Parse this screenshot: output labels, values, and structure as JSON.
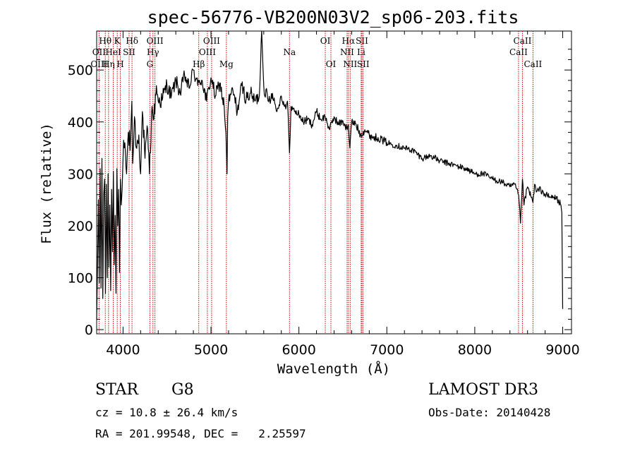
{
  "chart_data": {
    "type": "line",
    "title": "spec-56776-VB200N03V2_sp06-203.fits",
    "xlabel": "Wavelength (Å)",
    "ylabel": "Flux (relative)",
    "xlim": [
      3700,
      9100
    ],
    "ylim": [
      -8,
      575
    ],
    "xticks": [
      4000,
      5000,
      6000,
      7000,
      8000,
      9000
    ],
    "yticks": [
      0,
      100,
      200,
      300,
      400,
      500
    ],
    "series": [
      {
        "name": "flux",
        "color": "#000000",
        "x": [
          3700,
          3710,
          3720,
          3730,
          3740,
          3750,
          3760,
          3770,
          3780,
          3790,
          3800,
          3810,
          3820,
          3830,
          3840,
          3850,
          3860,
          3870,
          3880,
          3890,
          3900,
          3910,
          3920,
          3930,
          3940,
          3950,
          3960,
          3970,
          3980,
          3990,
          4000,
          4020,
          4040,
          4060,
          4080,
          4100,
          4110,
          4130,
          4150,
          4180,
          4200,
          4220,
          4250,
          4280,
          4300,
          4330,
          4350,
          4380,
          4400,
          4450,
          4500,
          4550,
          4600,
          4650,
          4700,
          4750,
          4800,
          4850,
          4870,
          4900,
          4950,
          5000,
          5050,
          5100,
          5150,
          5170,
          5183,
          5190,
          5200,
          5250,
          5300,
          5350,
          5400,
          5450,
          5500,
          5550,
          5577,
          5600,
          5650,
          5700,
          5750,
          5800,
          5850,
          5870,
          5893,
          5910,
          5950,
          6000,
          6050,
          6100,
          6150,
          6200,
          6250,
          6300,
          6350,
          6400,
          6450,
          6500,
          6550,
          6563,
          6580,
          6600,
          6650,
          6700,
          6750,
          6800,
          6850,
          6900,
          6950,
          7000,
          7100,
          7200,
          7300,
          7400,
          7500,
          7600,
          7700,
          7800,
          7900,
          8000,
          8100,
          8200,
          8300,
          8400,
          8450,
          8498,
          8520,
          8542,
          8560,
          8600,
          8662,
          8680,
          8700,
          8750,
          8800,
          8850,
          8900,
          8950,
          8980,
          8990,
          9000
        ],
        "y": [
          20,
          120,
          250,
          90,
          310,
          80,
          330,
          60,
          260,
          290,
          70,
          280,
          100,
          300,
          120,
          240,
          75,
          270,
          150,
          305,
          125,
          220,
          70,
          310,
          200,
          270,
          110,
          290,
          240,
          270,
          330,
          360,
          300,
          380,
          345,
          440,
          320,
          410,
          350,
          375,
          300,
          420,
          330,
          385,
          300,
          430,
          405,
          470,
          440,
          445,
          470,
          450,
          480,
          455,
          490,
          465,
          500,
          470,
          480,
          480,
          440,
          485,
          450,
          475,
          430,
          380,
          300,
          410,
          440,
          460,
          420,
          470,
          445,
          455,
          440,
          450,
          580,
          470,
          440,
          455,
          420,
          450,
          425,
          440,
          340,
          430,
          420,
          415,
          400,
          405,
          395,
          420,
          405,
          410,
          385,
          410,
          395,
          402,
          385,
          395,
          350,
          400,
          395,
          375,
          385,
          375,
          370,
          370,
          365,
          360,
          355,
          350,
          345,
          330,
          335,
          325,
          320,
          315,
          310,
          300,
          300,
          290,
          285,
          275,
          280,
          260,
          205,
          290,
          240,
          275,
          245,
          280,
          265,
          270,
          260,
          255,
          255,
          250,
          240,
          225,
          40
        ]
      }
    ],
    "lines": [
      {
        "label": "Hθ",
        "wl": 3798,
        "row": 1
      },
      {
        "label": "OII",
        "wl": 3727,
        "row": 2
      },
      {
        "label": "OIII",
        "wl": 3727,
        "row": 3
      },
      {
        "label": "K",
        "wl": 3934,
        "row": 1
      },
      {
        "label": "HeI",
        "wl": 3889,
        "row": 2
      },
      {
        "label": "Hη",
        "wl": 3835,
        "row": 3
      },
      {
        "label": "SII",
        "wl": 4069,
        "row": 2
      },
      {
        "label": "H",
        "wl": 3969,
        "row": 3
      },
      {
        "label": "Hδ",
        "wl": 4102,
        "row": 1
      },
      {
        "label": "OIII",
        "wl": 4363,
        "row": 1
      },
      {
        "label": "Hγ",
        "wl": 4340,
        "row": 2
      },
      {
        "label": "G",
        "wl": 4305,
        "row": 3
      },
      {
        "label": "Hβ",
        "wl": 4861,
        "row": 3
      },
      {
        "label": "OIII",
        "wl": 5007,
        "row": 1
      },
      {
        "label": "OIII",
        "wl": 4959,
        "row": 2
      },
      {
        "label": "Mg",
        "wl": 5175,
        "row": 3
      },
      {
        "label": "Na",
        "wl": 5893,
        "row": 2
      },
      {
        "label": "OI",
        "wl": 6300,
        "row": 1
      },
      {
        "label": "OI",
        "wl": 6364,
        "row": 3
      },
      {
        "label": "Hα",
        "wl": 6563,
        "row": 1
      },
      {
        "label": "SII",
        "wl": 6717,
        "row": 1
      },
      {
        "label": "NII",
        "wl": 6548,
        "row": 2
      },
      {
        "label": "Li",
        "wl": 6708,
        "row": 2
      },
      {
        "label": "NII",
        "wl": 6583,
        "row": 3
      },
      {
        "label": "SII",
        "wl": 6731,
        "row": 3
      },
      {
        "label": "CaII",
        "wl": 8542,
        "row": 1
      },
      {
        "label": "CaII",
        "wl": 8498,
        "row": 2
      },
      {
        "label": "CaII",
        "wl": 8662,
        "row": 3
      }
    ],
    "line_color": "#cc0000"
  },
  "footer": {
    "object_class": "STAR",
    "subclass": "G8",
    "survey": "LAMOST DR3",
    "cz": "cz = 10.8 ± 26.4 km/s",
    "obs_date": "Obs-Date: 20140428",
    "coords": "RA = 201.99548, DEC =   2.25597"
  }
}
